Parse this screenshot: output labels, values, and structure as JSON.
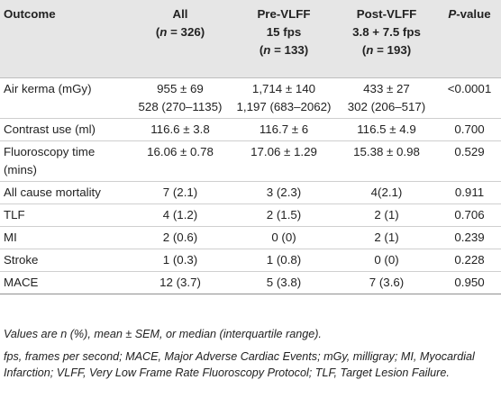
{
  "header": {
    "outcome": "Outcome",
    "all": {
      "line1": "All",
      "n_open": "(",
      "n_var": "n",
      "n_rest": " = 326)"
    },
    "pre": {
      "line1": "Pre-VLFF",
      "line2": "15 fps",
      "n_open": "(",
      "n_var": "n",
      "n_rest": " = 133)"
    },
    "post": {
      "line1": "Post-VLFF",
      "line2": "3.8 + 7.5 fps",
      "n_open": "(",
      "n_var": "n",
      "n_rest": " = 193)"
    },
    "pvalue": {
      "p": "P",
      "rest": "-value"
    }
  },
  "rows": [
    {
      "label": [
        "Air kerma (mGy)"
      ],
      "all": [
        "955 ± 69",
        "528 (270–1135)"
      ],
      "pre": [
        "1,714 ± 140",
        "1,197 (683–2062)"
      ],
      "post": [
        "433 ± 27",
        "302 (206–517)"
      ],
      "p": "<0.0001"
    },
    {
      "label": [
        "Contrast use (ml)"
      ],
      "all": [
        "116.6 ± 3.8"
      ],
      "pre": [
        "116.7 ± 6"
      ],
      "post": [
        "116.5 ± 4.9"
      ],
      "p": "0.700"
    },
    {
      "label": [
        "Fluoroscopy time",
        "(mins)"
      ],
      "all": [
        "16.06 ± 0.78"
      ],
      "pre": [
        "17.06 ± 1.29"
      ],
      "post": [
        "15.38 ± 0.98"
      ],
      "p": "0.529"
    },
    {
      "label": [
        "All cause mortality"
      ],
      "all": [
        "7 (2.1)"
      ],
      "pre": [
        "3 (2.3)"
      ],
      "post": [
        "4(2.1)"
      ],
      "p": "0.911"
    },
    {
      "label": [
        "TLF"
      ],
      "all": [
        "4 (1.2)"
      ],
      "pre": [
        "2 (1.5)"
      ],
      "post": [
        "2 (1)"
      ],
      "p": "0.706"
    },
    {
      "label": [
        "MI"
      ],
      "all": [
        "2 (0.6)"
      ],
      "pre": [
        "0 (0)"
      ],
      "post": [
        "2 (1)"
      ],
      "p": "0.239"
    },
    {
      "label": [
        "Stroke"
      ],
      "all": [
        "1 (0.3)"
      ],
      "pre": [
        "1 (0.8)"
      ],
      "post": [
        "0 (0)"
      ],
      "p": "0.228"
    },
    {
      "label": [
        "MACE"
      ],
      "all": [
        "12 (3.7)"
      ],
      "pre": [
        "5 (3.8)"
      ],
      "post": [
        "7 (3.6)"
      ],
      "p": "0.950"
    }
  ],
  "notes": {
    "line1": "Values are n (%), mean ± SEM, or median (interquartile range).",
    "line2": "fps, frames per second; MACE, Major Adverse Cardiac Events; mGy, milligray; MI, Myocardial Infarction; VLFF, Very Low Frame Rate Fluoroscopy Protocol; TLF, Target Lesion Failure."
  }
}
